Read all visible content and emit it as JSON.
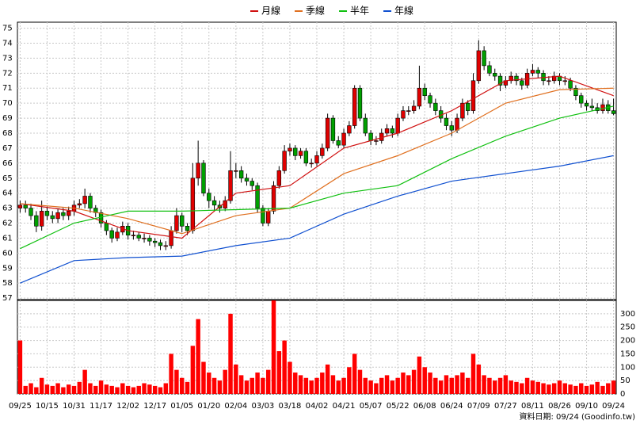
{
  "chart_data": {
    "type": "candlestick",
    "grid": true,
    "up_color": "#e00000",
    "down_color": "#00a000",
    "ylim": [
      56.9,
      75.4
    ],
    "yticks": [
      57,
      58,
      59,
      60,
      61,
      62,
      63,
      64,
      65,
      66,
      67,
      68,
      69,
      70,
      71,
      72,
      73,
      74,
      75
    ],
    "categories": [
      "09/25",
      null,
      null,
      null,
      null,
      "10/15",
      null,
      null,
      null,
      null,
      "10/31",
      null,
      null,
      null,
      null,
      "11/17",
      null,
      null,
      null,
      null,
      "12/02",
      null,
      null,
      null,
      null,
      "12/17",
      null,
      null,
      null,
      null,
      "01/05",
      null,
      null,
      null,
      null,
      "01/20",
      null,
      null,
      null,
      null,
      "02/04",
      null,
      null,
      null,
      null,
      "03/03",
      null,
      null,
      null,
      null,
      "03/18",
      null,
      null,
      null,
      null,
      "04/02",
      null,
      null,
      null,
      null,
      "04/21",
      null,
      null,
      null,
      null,
      "05/07",
      null,
      null,
      null,
      null,
      "05/22",
      null,
      null,
      null,
      null,
      "06/08",
      null,
      null,
      null,
      null,
      "06/24",
      null,
      null,
      null,
      null,
      "07/09",
      null,
      null,
      null,
      null,
      "07/27",
      null,
      null,
      null,
      null,
      "08/11",
      null,
      null,
      null,
      null,
      "08/26",
      null,
      null,
      null,
      null,
      "09/10",
      null,
      null,
      null,
      null,
      "09/24"
    ],
    "candles": [
      [
        63.0,
        63.5,
        62.7,
        63.2
      ],
      [
        63.2,
        63.5,
        62.7,
        63.0
      ],
      [
        63.0,
        63.3,
        62.2,
        62.5
      ],
      [
        62.5,
        62.8,
        61.4,
        61.8
      ],
      [
        61.8,
        63.5,
        61.5,
        62.8
      ],
      [
        62.8,
        63.1,
        62.2,
        62.5
      ],
      [
        62.5,
        62.8,
        62.0,
        62.3
      ],
      [
        62.3,
        63.0,
        62.0,
        62.7
      ],
      [
        62.7,
        63.0,
        62.2,
        62.5
      ],
      [
        62.5,
        63.1,
        62.2,
        62.8
      ],
      [
        62.8,
        63.5,
        62.5,
        63.2
      ],
      [
        63.2,
        63.6,
        63.0,
        63.3
      ],
      [
        63.3,
        64.3,
        63.0,
        63.8
      ],
      [
        63.8,
        64.0,
        62.7,
        63.0
      ],
      [
        63.0,
        63.2,
        62.4,
        62.7
      ],
      [
        62.7,
        62.9,
        61.7,
        62.0
      ],
      [
        62.0,
        62.2,
        61.2,
        61.5
      ],
      [
        61.5,
        61.7,
        60.7,
        61.0
      ],
      [
        61.0,
        61.7,
        60.8,
        61.4
      ],
      [
        61.4,
        62.1,
        61.2,
        61.8
      ],
      [
        61.8,
        62.0,
        60.9,
        61.2
      ],
      [
        61.2,
        61.5,
        60.9,
        61.2
      ],
      [
        61.2,
        61.4,
        60.8,
        61.0
      ],
      [
        61.0,
        61.3,
        60.7,
        61.0
      ],
      [
        61.0,
        61.2,
        60.5,
        60.8
      ],
      [
        60.8,
        61.0,
        60.4,
        60.7
      ],
      [
        60.7,
        60.9,
        60.2,
        60.5
      ],
      [
        60.5,
        60.8,
        60.2,
        60.5
      ],
      [
        60.5,
        61.8,
        60.3,
        61.5
      ],
      [
        61.5,
        63.0,
        61.3,
        62.5
      ],
      [
        62.5,
        62.7,
        61.4,
        61.8
      ],
      [
        61.8,
        62.0,
        61.2,
        61.5
      ],
      [
        61.5,
        66.0,
        61.3,
        65.0
      ],
      [
        65.0,
        67.5,
        64.5,
        66.0
      ],
      [
        66.0,
        66.2,
        63.8,
        64.0
      ],
      [
        64.0,
        64.3,
        63.0,
        63.5
      ],
      [
        63.5,
        63.8,
        62.8,
        63.2
      ],
      [
        63.2,
        63.5,
        62.7,
        63.0
      ],
      [
        63.0,
        63.8,
        62.8,
        63.5
      ],
      [
        63.5,
        66.8,
        63.3,
        65.5
      ],
      [
        65.5,
        66.0,
        65.0,
        65.5
      ],
      [
        65.5,
        65.8,
        64.7,
        65.0
      ],
      [
        65.0,
        65.3,
        64.5,
        64.8
      ],
      [
        64.8,
        65.0,
        64.2,
        64.5
      ],
      [
        64.5,
        64.7,
        62.7,
        63.0
      ],
      [
        63.0,
        63.2,
        61.8,
        62.0
      ],
      [
        62.0,
        63.0,
        61.8,
        62.8
      ],
      [
        62.8,
        64.8,
        62.6,
        64.5
      ],
      [
        64.5,
        65.8,
        64.3,
        65.5
      ],
      [
        65.5,
        67.2,
        65.3,
        66.8
      ],
      [
        66.8,
        67.3,
        66.5,
        67.0
      ],
      [
        67.0,
        67.2,
        66.2,
        66.5
      ],
      [
        66.5,
        67.0,
        66.3,
        66.8
      ],
      [
        66.8,
        67.0,
        65.8,
        66.0
      ],
      [
        66.0,
        66.3,
        65.7,
        66.0
      ],
      [
        66.0,
        66.8,
        65.8,
        66.5
      ],
      [
        66.5,
        67.3,
        66.3,
        67.0
      ],
      [
        67.0,
        69.3,
        66.8,
        69.0
      ],
      [
        69.0,
        69.2,
        67.3,
        67.5
      ],
      [
        67.5,
        67.8,
        67.0,
        67.2
      ],
      [
        67.2,
        68.3,
        67.0,
        68.0
      ],
      [
        68.0,
        68.8,
        67.8,
        68.5
      ],
      [
        68.5,
        71.2,
        68.3,
        71.0
      ],
      [
        71.0,
        71.2,
        68.8,
        69.0
      ],
      [
        69.0,
        69.3,
        67.8,
        68.0
      ],
      [
        68.0,
        68.2,
        67.2,
        67.5
      ],
      [
        67.5,
        67.8,
        67.2,
        67.5
      ],
      [
        67.5,
        68.3,
        67.3,
        68.0
      ],
      [
        68.0,
        68.6,
        67.8,
        68.3
      ],
      [
        68.3,
        68.5,
        67.7,
        68.0
      ],
      [
        68.0,
        69.3,
        67.8,
        69.0
      ],
      [
        69.0,
        69.8,
        68.8,
        69.5
      ],
      [
        69.5,
        69.8,
        69.2,
        69.5
      ],
      [
        69.5,
        70.2,
        69.3,
        69.8
      ],
      [
        69.8,
        72.5,
        69.6,
        71.0
      ],
      [
        71.0,
        71.3,
        70.2,
        70.5
      ],
      [
        70.5,
        70.7,
        69.7,
        70.0
      ],
      [
        70.0,
        70.3,
        69.2,
        69.5
      ],
      [
        69.5,
        69.8,
        68.7,
        69.0
      ],
      [
        69.0,
        69.3,
        68.2,
        68.5
      ],
      [
        68.5,
        68.8,
        67.8,
        68.2
      ],
      [
        68.2,
        69.3,
        68.0,
        69.0
      ],
      [
        69.0,
        70.3,
        68.8,
        70.0
      ],
      [
        70.0,
        70.2,
        69.2,
        69.5
      ],
      [
        69.5,
        72.0,
        69.3,
        71.5
      ],
      [
        71.5,
        74.2,
        71.3,
        73.5
      ],
      [
        73.5,
        73.8,
        72.2,
        72.5
      ],
      [
        72.5,
        72.8,
        71.8,
        72.0
      ],
      [
        72.0,
        72.3,
        71.5,
        71.8
      ],
      [
        71.8,
        72.0,
        70.8,
        71.2
      ],
      [
        71.2,
        71.8,
        71.0,
        71.5
      ],
      [
        71.5,
        72.1,
        71.3,
        71.8
      ],
      [
        71.8,
        72.0,
        71.2,
        71.5
      ],
      [
        71.5,
        71.7,
        70.9,
        71.2
      ],
      [
        71.2,
        72.3,
        71.0,
        72.0
      ],
      [
        72.0,
        72.6,
        71.8,
        72.2
      ],
      [
        72.2,
        72.4,
        71.7,
        72.0
      ],
      [
        72.0,
        72.2,
        71.2,
        71.5
      ],
      [
        71.5,
        71.8,
        71.2,
        71.5
      ],
      [
        71.5,
        72.1,
        71.3,
        71.8
      ],
      [
        71.8,
        72.0,
        71.2,
        71.5
      ],
      [
        71.5,
        71.8,
        71.2,
        71.5
      ],
      [
        71.5,
        71.7,
        70.8,
        71.0
      ],
      [
        71.0,
        71.2,
        70.2,
        70.5
      ],
      [
        70.5,
        70.7,
        69.7,
        70.0
      ],
      [
        70.0,
        70.2,
        69.5,
        69.8
      ],
      [
        69.8,
        70.3,
        69.5,
        69.7
      ],
      [
        69.7,
        70.0,
        69.3,
        69.5
      ],
      [
        69.5,
        70.3,
        69.3,
        69.9
      ],
      [
        69.9,
        70.2,
        69.3,
        69.5
      ],
      [
        69.5,
        70.3,
        69.2,
        69.3
      ]
    ],
    "ma": [
      {
        "name": "月線",
        "color": "#d01010",
        "x": [
          0,
          10,
          20,
          30,
          40,
          50,
          60,
          70,
          80,
          90,
          100,
          110
        ],
        "values": [
          63.3,
          62.8,
          61.5,
          61.0,
          64.0,
          64.5,
          67.0,
          68.0,
          69.5,
          71.5,
          71.8,
          70.5
        ]
      },
      {
        "name": "季線",
        "color": "#e07020",
        "x": [
          0,
          10,
          20,
          30,
          40,
          50,
          60,
          70,
          80,
          90,
          100,
          110
        ],
        "values": [
          63.3,
          63.0,
          62.3,
          61.3,
          62.5,
          63.0,
          65.3,
          66.5,
          68.0,
          70.0,
          70.9,
          71.0
        ]
      },
      {
        "name": "半年",
        "color": "#10c010",
        "x": [
          0,
          10,
          20,
          30,
          40,
          50,
          60,
          70,
          80,
          90,
          100,
          110
        ],
        "values": [
          60.3,
          62.0,
          62.8,
          62.8,
          62.9,
          63.0,
          64.0,
          64.5,
          66.3,
          67.8,
          69.0,
          69.8
        ]
      },
      {
        "name": "年線",
        "color": "#1050d0",
        "x": [
          0,
          10,
          20,
          30,
          40,
          50,
          60,
          70,
          80,
          90,
          100,
          110
        ],
        "values": [
          58.0,
          59.5,
          59.7,
          59.8,
          60.5,
          61.0,
          62.6,
          63.8,
          64.8,
          65.3,
          65.8,
          66.5
        ]
      }
    ],
    "volume": {
      "color": "#ff0000",
      "ylim": [
        0,
        350
      ],
      "yticks": [
        0,
        50,
        100,
        150,
        200,
        250,
        300
      ],
      "values": [
        200,
        30,
        40,
        25,
        60,
        35,
        30,
        40,
        25,
        35,
        30,
        45,
        90,
        40,
        30,
        50,
        35,
        30,
        25,
        40,
        30,
        25,
        30,
        40,
        35,
        30,
        25,
        40,
        150,
        90,
        60,
        45,
        180,
        280,
        120,
        80,
        60,
        50,
        90,
        300,
        110,
        70,
        50,
        60,
        80,
        60,
        90,
        350,
        160,
        200,
        120,
        80,
        70,
        60,
        50,
        60,
        80,
        110,
        70,
        50,
        60,
        100,
        150,
        90,
        60,
        50,
        40,
        60,
        70,
        50,
        60,
        80,
        70,
        90,
        140,
        100,
        80,
        60,
        50,
        70,
        60,
        70,
        80,
        60,
        150,
        110,
        70,
        60,
        50,
        60,
        70,
        50,
        45,
        40,
        60,
        50,
        45,
        40,
        35,
        40,
        50,
        40,
        35,
        30,
        40,
        30,
        35,
        45,
        30,
        40,
        50
      ]
    },
    "footer": "資料日期: 09/24  (Goodinfo.tw)"
  }
}
